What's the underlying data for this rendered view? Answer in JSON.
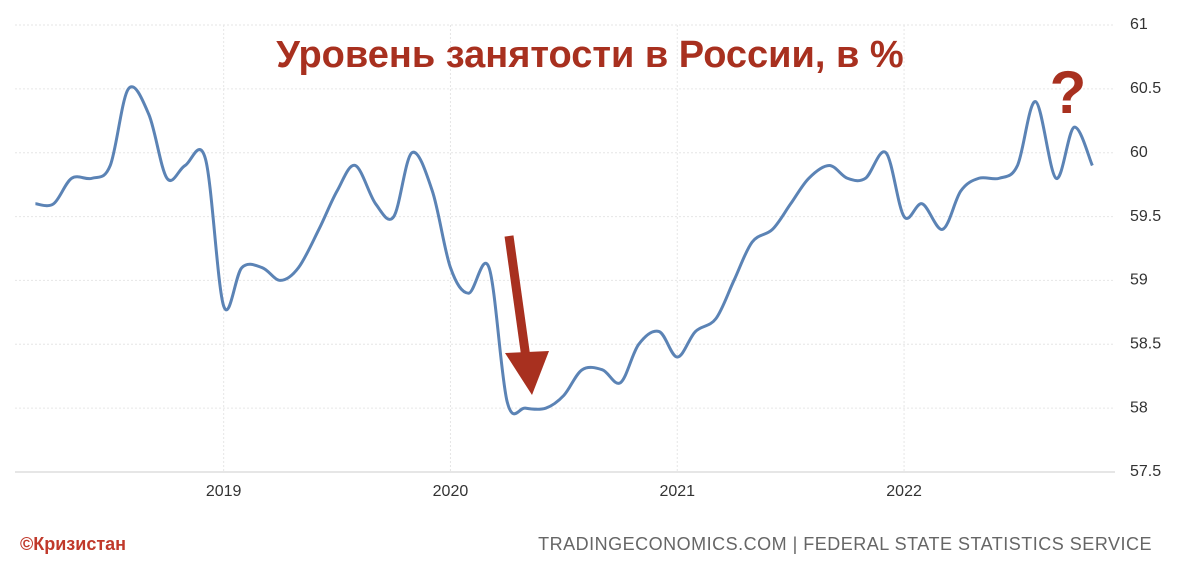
{
  "chart_data": {
    "type": "line",
    "title": "Уровень занятости в России, в %",
    "annotation": "?",
    "credit": "©Кризистан",
    "source": "TRADINGECONOMICS.COM | FEDERAL STATE STATISTICS SERVICE",
    "x": [
      2018.17,
      2018.25,
      2018.33,
      2018.42,
      2018.5,
      2018.58,
      2018.67,
      2018.75,
      2018.83,
      2018.92,
      2019.0,
      2019.08,
      2019.17,
      2019.25,
      2019.33,
      2019.42,
      2019.5,
      2019.58,
      2019.67,
      2019.75,
      2019.83,
      2019.92,
      2020.0,
      2020.08,
      2020.17,
      2020.25,
      2020.33,
      2020.42,
      2020.5,
      2020.58,
      2020.67,
      2020.75,
      2020.83,
      2020.92,
      2021.0,
      2021.08,
      2021.17,
      2021.25,
      2021.33,
      2021.42,
      2021.5,
      2021.58,
      2021.67,
      2021.75,
      2021.83,
      2021.92,
      2022.0,
      2022.08,
      2022.17,
      2022.25,
      2022.33,
      2022.42,
      2022.5,
      2022.58,
      2022.67,
      2022.75,
      2022.83
    ],
    "values": [
      59.6,
      59.6,
      59.8,
      59.8,
      59.9,
      60.5,
      60.3,
      59.8,
      59.9,
      59.95,
      58.8,
      59.1,
      59.1,
      59.0,
      59.1,
      59.4,
      59.7,
      59.9,
      59.6,
      59.5,
      60.0,
      59.7,
      59.1,
      58.9,
      59.1,
      58.05,
      58.0,
      58.0,
      58.1,
      58.3,
      58.3,
      58.2,
      58.5,
      58.6,
      58.4,
      58.6,
      58.7,
      59.0,
      59.3,
      59.4,
      59.6,
      59.8,
      59.9,
      59.8,
      59.8,
      60.0,
      59.5,
      59.6,
      59.4,
      59.7,
      59.8,
      59.8,
      59.9,
      60.4,
      59.8,
      60.2,
      59.9
    ],
    "color": "#5b83b5",
    "xlim": [
      2018.08,
      2022.93
    ],
    "ylim": [
      57.5,
      61
    ],
    "xticks": [
      2019,
      2020,
      2021,
      2022
    ],
    "yticks": [
      57.5,
      58,
      58.5,
      59,
      59.5,
      60,
      60.5,
      61
    ],
    "grid": true
  }
}
